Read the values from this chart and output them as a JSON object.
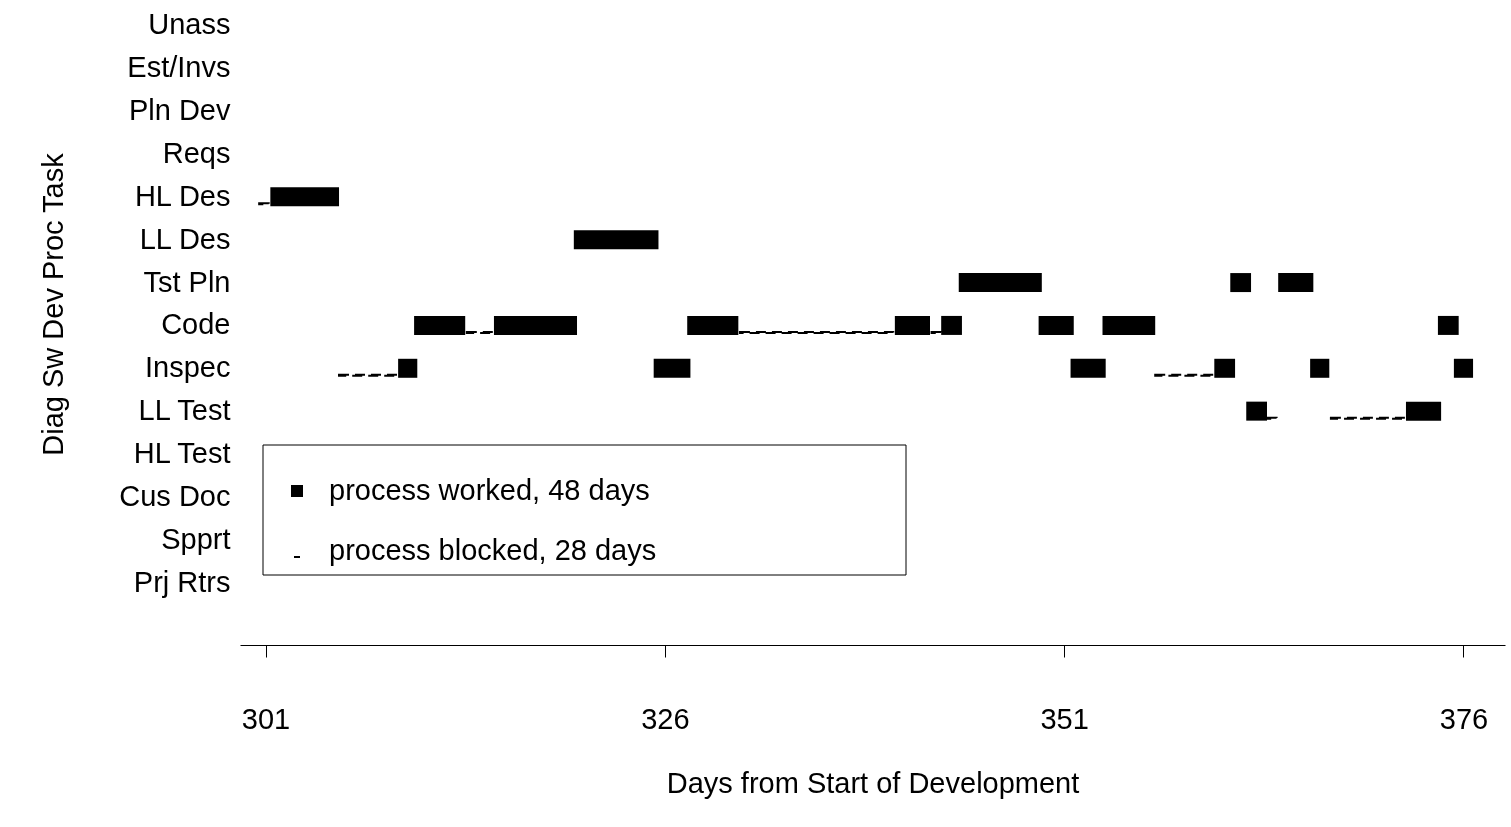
{
  "chart_data": {
    "type": "bar",
    "orientation": "horizontal",
    "xlabel": "Days from Start of Development",
    "ylabel": "Diag Sw Dev Proc Task",
    "categories": [
      "Unass",
      "Est/Invs",
      "Pln Dev",
      "Reqs",
      "HL Des",
      "LL Des",
      "Tst Pln",
      "Code",
      "Inspec",
      "LL Test",
      "HL Test",
      "Cus Doc",
      "Spprt",
      "Prj Rtrs"
    ],
    "xlim": [
      299.4,
      378.6
    ],
    "xticks": [
      301,
      326,
      351,
      376
    ],
    "grid": false,
    "legend": "bottom left",
    "series": [
      {
        "name": "process worked,  48  days",
        "color": "#000000",
        "line_style": "solid",
        "base": [
          null,
          null,
          null,
          null,
          301.3,
          320.3,
          344.4,
          310.3,
          309.3,
          362.4,
          null,
          null,
          null,
          null
        ],
        "values": [
          null,
          null,
          null,
          null,
          4.3,
          5.3,
          5.2,
          3.2,
          1.2,
          1.3,
          null,
          null,
          null,
          null
        ]
      },
      {
        "color": "#000000",
        "line_style": "solid",
        "base": [
          null,
          null,
          null,
          null,
          null,
          null,
          361.4,
          315.3,
          325.3,
          372.4,
          null,
          null,
          null,
          null
        ],
        "values": [
          null,
          null,
          null,
          null,
          null,
          null,
          1.3,
          5.2,
          2.3,
          2.2,
          null,
          null,
          null,
          null
        ]
      },
      {
        "color": "#000000",
        "line_style": "solid",
        "base": [
          null,
          null,
          null,
          null,
          null,
          null,
          364.4,
          327.4,
          351.4,
          null,
          null,
          null,
          null,
          null
        ],
        "values": [
          null,
          null,
          null,
          null,
          null,
          null,
          2.2,
          3.2,
          2.2,
          null,
          null,
          null,
          null,
          null
        ]
      },
      {
        "color": "#000000",
        "line_style": "solid",
        "base": [
          null,
          null,
          null,
          null,
          null,
          null,
          null,
          340.4,
          360.4,
          null,
          null,
          null,
          null,
          null
        ],
        "values": [
          null,
          null,
          null,
          null,
          null,
          null,
          null,
          2.2,
          1.3,
          null,
          null,
          null,
          null,
          null
        ]
      },
      {
        "color": "#000000",
        "line_style": "solid",
        "base": [
          null,
          null,
          null,
          null,
          null,
          null,
          null,
          343.3,
          366.4,
          null,
          null,
          null,
          null,
          null
        ],
        "values": [
          null,
          null,
          null,
          null,
          null,
          null,
          null,
          1.3,
          1.2,
          null,
          null,
          null,
          null,
          null
        ]
      },
      {
        "color": "#000000",
        "line_style": "solid",
        "base": [
          null,
          null,
          null,
          null,
          null,
          null,
          null,
          349.4,
          375.4,
          null,
          null,
          null,
          null,
          null
        ],
        "values": [
          null,
          null,
          null,
          null,
          null,
          null,
          null,
          2.2,
          1.2,
          null,
          null,
          null,
          null,
          null
        ]
      },
      {
        "color": "#000000",
        "line_style": "solid",
        "base": [
          null,
          null,
          null,
          null,
          null,
          null,
          null,
          353.4,
          null,
          null,
          null,
          null,
          null,
          null
        ],
        "values": [
          null,
          null,
          null,
          null,
          null,
          null,
          null,
          3.3,
          null,
          null,
          null,
          null,
          null,
          null
        ]
      },
      {
        "color": "#000000",
        "line_style": "solid",
        "base": [
          null,
          null,
          null,
          null,
          null,
          null,
          null,
          374.4,
          null,
          null,
          null,
          null,
          null,
          null
        ],
        "values": [
          null,
          null,
          null,
          null,
          null,
          null,
          null,
          1.3,
          null,
          null,
          null,
          null,
          null,
          null
        ]
      },
      {
        "name": "process blocked,  28  days",
        "color": "#000000",
        "line_style": "dashed",
        "base": [
          null,
          null,
          null,
          null,
          300.6,
          null,
          null,
          313.6,
          305.6,
          363.7,
          null,
          null,
          null,
          null
        ],
        "values": [
          null,
          null,
          null,
          null,
          0.6,
          null,
          null,
          1.7,
          3.7,
          0.6,
          null,
          null,
          null,
          null
        ]
      },
      {
        "color": "#000000",
        "line_style": "dashed",
        "base": [
          null,
          null,
          null,
          null,
          null,
          null,
          null,
          330.7,
          356.7,
          367.7,
          null,
          null,
          null,
          null
        ],
        "values": [
          null,
          null,
          null,
          null,
          null,
          null,
          null,
          9.6,
          3.7,
          4.7,
          null,
          null,
          null,
          null
        ]
      },
      {
        "color": "#000000",
        "line_style": "dashed",
        "base": [
          null,
          null,
          null,
          null,
          null,
          null,
          null,
          342.7,
          null,
          null,
          null,
          null,
          null,
          null
        ],
        "values": [
          null,
          null,
          null,
          null,
          null,
          null,
          null,
          0.6,
          null,
          null,
          null,
          null,
          null,
          null
        ]
      }
    ]
  }
}
